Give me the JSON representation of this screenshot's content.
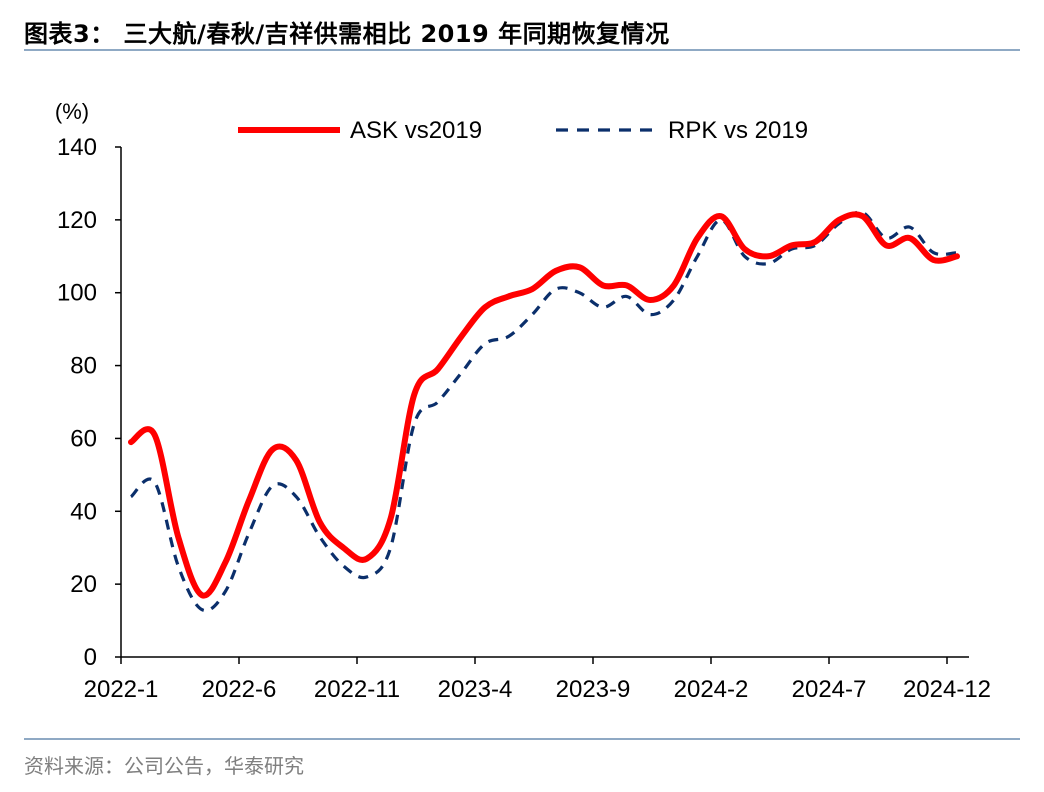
{
  "header": {
    "title": "图表3：   三大航/春秋/吉祥供需相比 2019 年同期恢复情况"
  },
  "footer": {
    "source": "资料来源：公司公告，华泰研究"
  },
  "colors": {
    "ask": "#ff0000",
    "rpk": "#0b2f6b",
    "rule": "#8fa9c4"
  },
  "chart_data": {
    "type": "line",
    "unit_label": "(%)",
    "ylim": [
      0,
      140
    ],
    "yticks": [
      0,
      20,
      40,
      60,
      80,
      100,
      120,
      140
    ],
    "x_tick_labels": [
      "2022-1",
      "2022-6",
      "2022-11",
      "2023-4",
      "2023-9",
      "2024-2",
      "2024-7",
      "2024-12"
    ],
    "x_tick_index": [
      0,
      5,
      10,
      15,
      20,
      25,
      30,
      35
    ],
    "legend_position": "top",
    "grid": false,
    "x": [
      "2022-1",
      "2022-2",
      "2022-3",
      "2022-4",
      "2022-5",
      "2022-6",
      "2022-7",
      "2022-8",
      "2022-9",
      "2022-10",
      "2022-11",
      "2022-12",
      "2023-1",
      "2023-2",
      "2023-3",
      "2023-4",
      "2023-5",
      "2023-6",
      "2023-7",
      "2023-8",
      "2023-9",
      "2023-10",
      "2023-11",
      "2023-12",
      "2024-1",
      "2024-2",
      "2024-3",
      "2024-4",
      "2024-5",
      "2024-6",
      "2024-7",
      "2024-8",
      "2024-9",
      "2024-10",
      "2024-11",
      "2024-12"
    ],
    "series": [
      {
        "name": "ASK vs2019",
        "style": "solid",
        "values": [
          59,
          61,
          33,
          17,
          26,
          43,
          57,
          54,
          37,
          30,
          27,
          38,
          72,
          79,
          88,
          96,
          99,
          101,
          106,
          107,
          102,
          102,
          98,
          102,
          115,
          121,
          112,
          110,
          113,
          114,
          120,
          121,
          113,
          115,
          109,
          110
        ]
      },
      {
        "name": "RPK vs 2019",
        "style": "dashed",
        "values": [
          44,
          48,
          25,
          13,
          18,
          34,
          47,
          44,
          33,
          25,
          22,
          30,
          64,
          70,
          78,
          86,
          88,
          94,
          101,
          100,
          96,
          99,
          94,
          98,
          110,
          120,
          110,
          108,
          112,
          113,
          119,
          122,
          115,
          118,
          111,
          111
        ]
      }
    ]
  }
}
